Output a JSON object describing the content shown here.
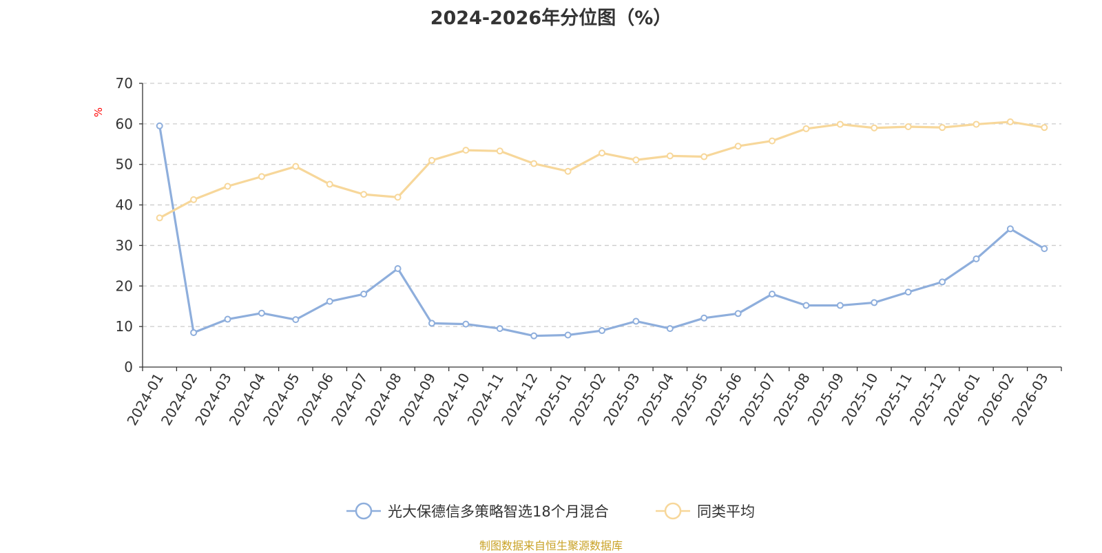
{
  "chart_data": {
    "type": "line",
    "title": "2024-2026年分位图（%）",
    "unit_label": "%",
    "source_note": "制图数据来自恒生聚源数据库",
    "x": [
      "2024-01",
      "2024-02",
      "2024-03",
      "2024-04",
      "2024-05",
      "2024-06",
      "2024-07",
      "2024-08",
      "2024-09",
      "2024-10",
      "2024-11",
      "2024-12",
      "2025-01",
      "2025-02",
      "2025-03",
      "2025-04",
      "2025-05",
      "2025-06",
      "2025-07",
      "2025-08",
      "2025-09",
      "2025-10",
      "2025-11",
      "2025-12",
      "2026-01",
      "2026-02",
      "2026-03"
    ],
    "ylim": [
      0,
      70
    ],
    "yticks": [
      0,
      10,
      20,
      30,
      40,
      50,
      60,
      70
    ],
    "grid": true,
    "legend_position": "bottom",
    "series": [
      {
        "name": "光大保德信多策略智选18个月混合",
        "color": "#8eaedc",
        "values": [
          59.5,
          8.5,
          11.8,
          13.3,
          11.7,
          16.2,
          18.0,
          24.3,
          10.8,
          10.6,
          9.5,
          7.7,
          7.9,
          9.0,
          11.3,
          9.5,
          12.1,
          13.2,
          18.0,
          15.2,
          15.2,
          15.9,
          18.5,
          21.0,
          26.7,
          34.1,
          29.2
        ]
      },
      {
        "name": "同类平均",
        "color": "#f7d79a",
        "values": [
          36.8,
          41.3,
          44.6,
          47.0,
          49.5,
          45.1,
          42.6,
          41.9,
          51.0,
          53.5,
          53.3,
          50.2,
          48.3,
          52.8,
          51.1,
          52.1,
          51.9,
          54.5,
          55.8,
          58.8,
          59.9,
          59.0,
          59.3,
          59.1,
          59.9,
          60.5,
          59.1
        ]
      }
    ]
  }
}
